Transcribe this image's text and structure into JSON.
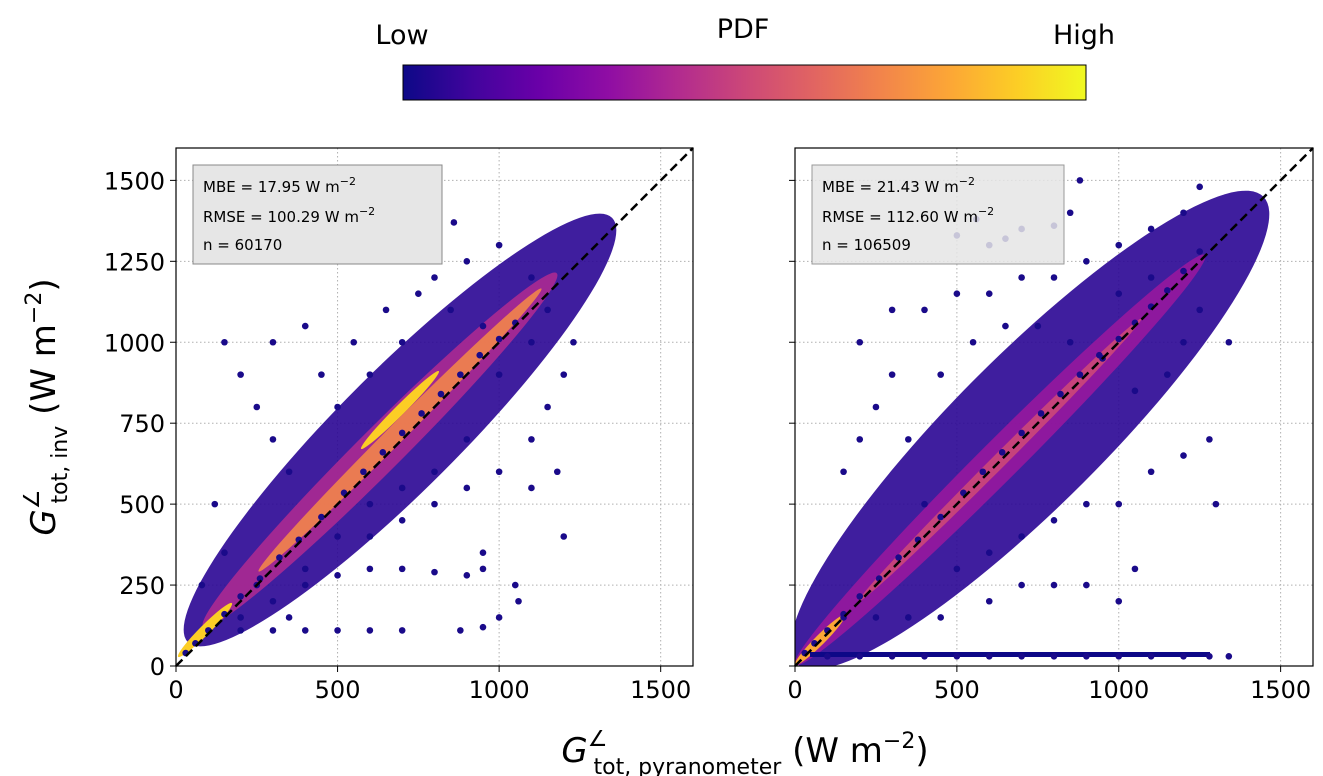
{
  "colorbar": {
    "title": "PDF",
    "low_label": "Low",
    "high_label": "High",
    "colormap": [
      "#0d0887",
      "#41049d",
      "#6a00a8",
      "#8f0da4",
      "#b12a90",
      "#cc4778",
      "#e16462",
      "#f2844b",
      "#fca636",
      "#fcce25",
      "#f0f921"
    ]
  },
  "axes": {
    "xlabel": {
      "main": "G",
      "sup": "∠",
      "sub": "tot, pyranometer",
      "unit_prefix": " (W m",
      "unit_exp": "−2",
      "unit_suffix": ")"
    },
    "ylabel": {
      "main": "G",
      "sup": "∠",
      "sub": "tot, inv",
      "unit_prefix": " (W m",
      "unit_exp": "−2",
      "unit_suffix": ")"
    }
  },
  "chart_data": [
    {
      "type": "scatter",
      "title": "",
      "xlim": [
        0,
        1600
      ],
      "ylim": [
        0,
        1600
      ],
      "xticks": [
        0,
        500,
        1000,
        1500
      ],
      "yticks": [
        0,
        250,
        500,
        750,
        1000,
        1250,
        1500
      ],
      "grid": true,
      "reference_line": "y = x (dashed)",
      "colored_by": "point density (PDF)",
      "stats": {
        "mbe": {
          "label": "MBE = 17.95 W m",
          "exp": "−2"
        },
        "rmse": {
          "label": "RMSE = 100.29 W m",
          "exp": "−2"
        },
        "n": {
          "label": "n = 60170"
        }
      },
      "points": [
        [
          30,
          40
        ],
        [
          60,
          70
        ],
        [
          100,
          110
        ],
        [
          150,
          160
        ],
        [
          200,
          215
        ],
        [
          260,
          270
        ],
        [
          320,
          335
        ],
        [
          380,
          390
        ],
        [
          450,
          460
        ],
        [
          520,
          535
        ],
        [
          580,
          600
        ],
        [
          640,
          660
        ],
        [
          700,
          720
        ],
        [
          760,
          780
        ],
        [
          820,
          840
        ],
        [
          880,
          900
        ],
        [
          940,
          960
        ],
        [
          1000,
          1010
        ],
        [
          1050,
          1060
        ],
        [
          200,
          110
        ],
        [
          300,
          110
        ],
        [
          400,
          110
        ],
        [
          500,
          110
        ],
        [
          600,
          110
        ],
        [
          700,
          110
        ],
        [
          880,
          110
        ],
        [
          950,
          120
        ],
        [
          400,
          250
        ],
        [
          500,
          280
        ],
        [
          600,
          300
        ],
        [
          700,
          300
        ],
        [
          800,
          290
        ],
        [
          900,
          280
        ],
        [
          950,
          300
        ],
        [
          300,
          700
        ],
        [
          250,
          800
        ],
        [
          200,
          900
        ],
        [
          150,
          1000
        ],
        [
          300,
          1000
        ],
        [
          400,
          1050
        ],
        [
          350,
          600
        ],
        [
          600,
          900
        ],
        [
          700,
          1000
        ],
        [
          800,
          1200
        ],
        [
          900,
          1250
        ],
        [
          1000,
          1300
        ],
        [
          860,
          1370
        ],
        [
          680,
          1270
        ],
        [
          600,
          400
        ],
        [
          700,
          450
        ],
        [
          800,
          500
        ],
        [
          900,
          550
        ],
        [
          1000,
          600
        ],
        [
          1100,
          700
        ],
        [
          1150,
          800
        ],
        [
          1200,
          900
        ],
        [
          1230,
          1000
        ],
        [
          1200,
          400
        ],
        [
          1000,
          150
        ],
        [
          1050,
          250
        ],
        [
          950,
          350
        ],
        [
          120,
          500
        ],
        [
          80,
          250
        ],
        [
          150,
          350
        ],
        [
          250,
          250
        ],
        [
          350,
          150
        ],
        [
          500,
          800
        ],
        [
          450,
          900
        ],
        [
          550,
          1000
        ],
        [
          650,
          1100
        ],
        [
          750,
          1150
        ],
        [
          850,
          1100
        ],
        [
          950,
          1050
        ],
        [
          1100,
          1000
        ],
        [
          1150,
          1100
        ],
        [
          1100,
          1200
        ],
        [
          1000,
          900
        ],
        [
          900,
          700
        ],
        [
          800,
          600
        ],
        [
          700,
          550
        ],
        [
          600,
          500
        ],
        [
          500,
          400
        ],
        [
          400,
          300
        ],
        [
          300,
          200
        ],
        [
          200,
          150
        ],
        [
          1060,
          200
        ],
        [
          1100,
          550
        ],
        [
          1180,
          600
        ]
      ]
    },
    {
      "type": "scatter",
      "title": "",
      "xlim": [
        0,
        1600
      ],
      "ylim": [
        0,
        1600
      ],
      "xticks": [
        0,
        500,
        1000,
        1500
      ],
      "yticks": [
        0,
        250,
        500,
        750,
        1000,
        1250,
        1500
      ],
      "grid": true,
      "reference_line": "y = x (dashed)",
      "colored_by": "point density (PDF)",
      "stats": {
        "mbe": {
          "label": "MBE = 21.43 W m",
          "exp": "−2"
        },
        "rmse": {
          "label": "RMSE = 112.60 W m",
          "exp": "−2"
        },
        "n": {
          "label": "n = 106509"
        }
      },
      "points": [
        [
          30,
          40
        ],
        [
          60,
          70
        ],
        [
          100,
          110
        ],
        [
          150,
          160
        ],
        [
          200,
          215
        ],
        [
          260,
          270
        ],
        [
          320,
          335
        ],
        [
          380,
          390
        ],
        [
          450,
          460
        ],
        [
          520,
          535
        ],
        [
          580,
          600
        ],
        [
          640,
          660
        ],
        [
          700,
          720
        ],
        [
          760,
          780
        ],
        [
          820,
          840
        ],
        [
          880,
          900
        ],
        [
          940,
          960
        ],
        [
          1000,
          1010
        ],
        [
          1050,
          1060
        ],
        [
          1100,
          1110
        ],
        [
          1150,
          1160
        ],
        [
          1200,
          1220
        ],
        [
          1250,
          1280
        ],
        [
          100,
          30
        ],
        [
          200,
          30
        ],
        [
          300,
          30
        ],
        [
          400,
          30
        ],
        [
          500,
          30
        ],
        [
          600,
          30
        ],
        [
          700,
          30
        ],
        [
          800,
          30
        ],
        [
          900,
          30
        ],
        [
          1000,
          30
        ],
        [
          1100,
          30
        ],
        [
          1200,
          30
        ],
        [
          1280,
          30
        ],
        [
          1340,
          30
        ],
        [
          150,
          150
        ],
        [
          250,
          150
        ],
        [
          350,
          150
        ],
        [
          450,
          150
        ],
        [
          150,
          600
        ],
        [
          200,
          700
        ],
        [
          250,
          800
        ],
        [
          300,
          900
        ],
        [
          200,
          1000
        ],
        [
          300,
          1100
        ],
        [
          400,
          1100
        ],
        [
          500,
          1150
        ],
        [
          600,
          1150
        ],
        [
          700,
          1200
        ],
        [
          800,
          1200
        ],
        [
          900,
          1250
        ],
        [
          1000,
          1300
        ],
        [
          1100,
          1350
        ],
        [
          1200,
          1400
        ],
        [
          1250,
          1480
        ],
        [
          880,
          1500
        ],
        [
          560,
          1380
        ],
        [
          700,
          1350
        ],
        [
          800,
          1360
        ],
        [
          650,
          1320
        ],
        [
          600,
          1300
        ],
        [
          500,
          1330
        ],
        [
          850,
          1400
        ],
        [
          500,
          300
        ],
        [
          600,
          350
        ],
        [
          700,
          400
        ],
        [
          800,
          450
        ],
        [
          900,
          500
        ],
        [
          1000,
          500
        ],
        [
          1100,
          600
        ],
        [
          1200,
          650
        ],
        [
          1280,
          700
        ],
        [
          1300,
          500
        ],
        [
          1340,
          1000
        ],
        [
          1000,
          200
        ],
        [
          1050,
          300
        ],
        [
          900,
          250
        ],
        [
          800,
          250
        ],
        [
          700,
          250
        ],
        [
          600,
          200
        ],
        [
          400,
          500
        ],
        [
          350,
          700
        ],
        [
          450,
          900
        ],
        [
          550,
          1000
        ],
        [
          650,
          1050
        ],
        [
          750,
          1050
        ],
        [
          850,
          1000
        ],
        [
          950,
          950
        ],
        [
          1050,
          850
        ],
        [
          1150,
          900
        ],
        [
          1200,
          1000
        ],
        [
          1250,
          1100
        ],
        [
          1100,
          1200
        ],
        [
          1000,
          1150
        ]
      ]
    }
  ]
}
